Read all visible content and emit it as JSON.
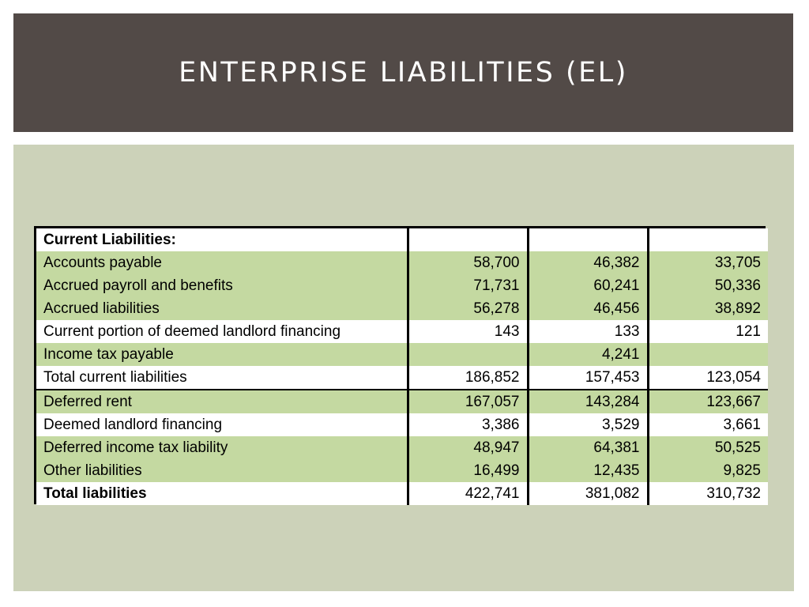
{
  "slide": {
    "title": "ENTERPRISE LIABILITIES (EL)",
    "colors": {
      "title_bar": "#524a47",
      "panel": "#ccd2b9",
      "row_green": "#c4d9a1"
    }
  },
  "table": {
    "header": {
      "label": "Current Liabilities:",
      "values": [
        "",
        "",
        ""
      ]
    },
    "rows": [
      {
        "label": "Accounts payable",
        "values": [
          "58,700",
          "46,382",
          "33,705"
        ]
      },
      {
        "label": "Accrued payroll and benefits",
        "values": [
          "71,731",
          "60,241",
          "50,336"
        ]
      },
      {
        "label": "Accrued liabilities",
        "values": [
          "56,278",
          "46,456",
          "38,892"
        ]
      },
      {
        "label": "Current portion of deemed landlord financing",
        "values": [
          "143",
          "133",
          "121"
        ]
      },
      {
        "label": "Income tax payable",
        "values": [
          "",
          "4,241",
          ""
        ]
      },
      {
        "label": "Total current liabilities",
        "values": [
          "186,852",
          "157,453",
          "123,054"
        ]
      },
      {
        "label": "Deferred rent",
        "values": [
          "167,057",
          "143,284",
          "123,667"
        ]
      },
      {
        "label": "Deemed landlord financing",
        "values": [
          "3,386",
          "3,529",
          "3,661"
        ]
      },
      {
        "label": "Deferred income tax liability",
        "values": [
          "48,947",
          "64,381",
          "50,525"
        ]
      },
      {
        "label": "Other liabilities",
        "values": [
          "16,499",
          "12,435",
          "9,825"
        ]
      },
      {
        "label": "Total liabilities",
        "values": [
          "422,741",
          "381,082",
          "310,732"
        ]
      }
    ]
  }
}
